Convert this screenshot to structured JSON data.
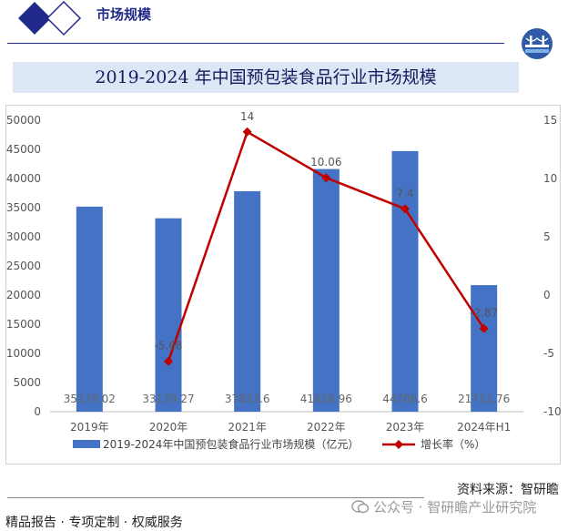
{
  "header": {
    "title": "市场规模"
  },
  "chart_title": "2019-2024 年中国预包装食品行业市场规模",
  "source": "资料来源：智研瞻",
  "footer": {
    "tagline": "精品报告 · 专项定制 · 权威服务",
    "watermark": "公众号 · 智研瞻产业研究院"
  },
  "colors": {
    "bar": "#4472c4",
    "line": "#c00000",
    "brand": "#1f2a8a",
    "title_bg": "#dce6f5"
  },
  "icons": {
    "logo": "diamond-logo-icon",
    "badge": "bridge-badge-icon",
    "watermark": "wechat-icon"
  },
  "chart_data": {
    "type": "bar",
    "title": "2019-2024 年中国预包装食品行业市场规模",
    "categories": [
      "2019年",
      "2020年",
      "2021年",
      "2022年",
      "2023年",
      "2024年H1"
    ],
    "series": [
      {
        "name": "2019-2024年中国预包装食品行业市场规模（亿元）",
        "type": "bar",
        "axis": "left",
        "values": [
          35179.02,
          33179.27,
          37823.6,
          41626.96,
          44706.6,
          21711.76
        ],
        "labels": [
          "35179.02",
          "33179.27",
          "37823.6",
          "41626.96",
          "44706.6",
          "21711.76"
        ]
      },
      {
        "name": "增长率（%）",
        "type": "line",
        "axis": "right",
        "values": [
          null,
          -5.68,
          14,
          10.06,
          7.4,
          -2.87
        ],
        "labels": [
          "",
          "-5.68",
          "14",
          "10.06",
          "7.4",
          "-2.87"
        ]
      }
    ],
    "y_left": {
      "min": 0,
      "max": 50000,
      "step": 5000
    },
    "y_right": {
      "min": -10,
      "max": 15,
      "step": 5
    },
    "y_left_ticks": [
      "0",
      "5000",
      "10000",
      "15000",
      "20000",
      "25000",
      "30000",
      "35000",
      "40000",
      "45000",
      "50000"
    ],
    "y_right_ticks": [
      "-10",
      "-5",
      "0",
      "5",
      "10",
      "15"
    ],
    "legend_position": "bottom",
    "grid": false
  }
}
